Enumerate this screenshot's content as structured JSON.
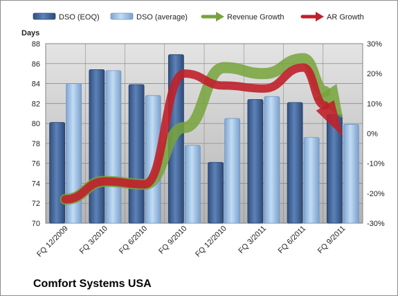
{
  "chart_data": {
    "type": "bar",
    "title": "Comfort Systems USA",
    "ylabel": "Days",
    "categories": [
      "FQ 12/2009",
      "FQ 3/2010",
      "FQ 6/2010",
      "FQ 9/2010",
      "FQ 12/2010",
      "FQ 3/2011",
      "FQ 6/2011",
      "FQ 9/2011"
    ],
    "ylim": [
      70,
      88
    ],
    "y_ticks": [
      "70",
      "72",
      "74",
      "76",
      "78",
      "80",
      "82",
      "84",
      "86",
      "88"
    ],
    "y2lim": [
      -0.3,
      0.3
    ],
    "y2_ticks": [
      "-30%",
      "-20%",
      "-10%",
      "0%",
      "10%",
      "20%",
      "30%"
    ],
    "grid": true,
    "legend_position": "top",
    "series": [
      {
        "name": "DSO (EOQ)",
        "kind": "bar",
        "axis": "left",
        "color": "#4a6fa5",
        "values": [
          80.1,
          85.4,
          83.9,
          86.9,
          76.1,
          82.4,
          82.1,
          80.9
        ]
      },
      {
        "name": "DSO (average)",
        "kind": "bar",
        "axis": "left",
        "color": "#9fc4e8",
        "values": [
          84.0,
          85.3,
          82.8,
          77.8,
          80.5,
          82.7,
          78.6,
          79.9
        ]
      },
      {
        "name": "Revenue Growth",
        "kind": "line",
        "axis": "right",
        "color": "#77a33c",
        "values": [
          -0.22,
          -0.16,
          -0.17,
          0.02,
          0.22,
          0.2,
          0.25,
          0.05
        ]
      },
      {
        "name": "AR Growth",
        "kind": "line",
        "axis": "right",
        "color": "#c0202a",
        "values": [
          -0.22,
          -0.16,
          -0.17,
          0.2,
          0.16,
          0.15,
          0.22,
          -0.01
        ]
      }
    ]
  },
  "colors": {
    "plot_bg_top": "#dedede",
    "plot_bg_bottom": "#b9b9b9",
    "grid": "#8a8a8a"
  }
}
